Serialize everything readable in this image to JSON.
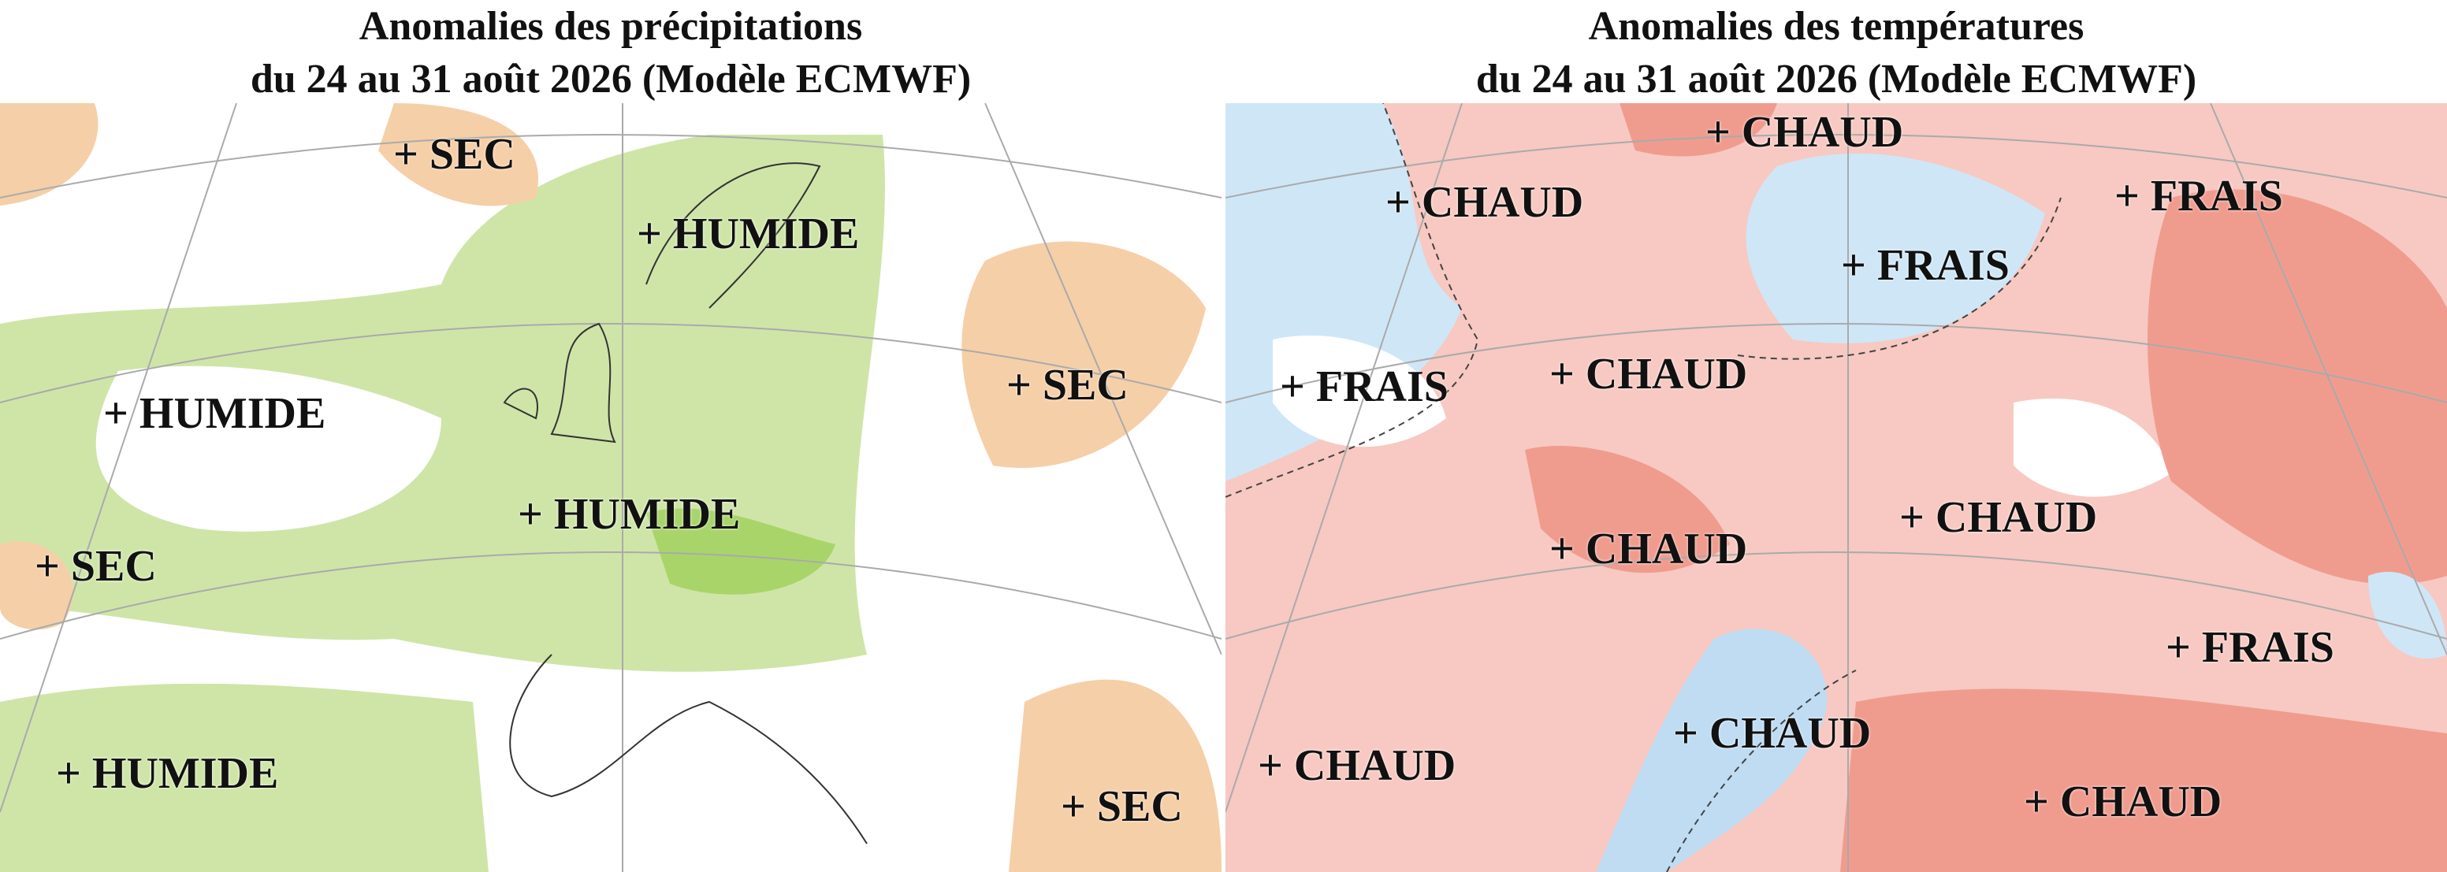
{
  "panels": [
    {
      "title": [
        "Anomalies des précipitations",
        "du 24 au 31 août 2026 (Modèle ECMWF)"
      ],
      "labels": [
        "+ SEC",
        "+ HUMIDE",
        "+ HUMIDE",
        "+ SEC",
        "+ HUMIDE",
        "+ SEC",
        "+ HUMIDE",
        "+ SEC"
      ]
    },
    {
      "title": [
        "Anomalies des températures",
        "du 24 au 31 août 2026 (Modèle ECMWF)"
      ],
      "labels": [
        "+ CHAUD",
        "+ CHAUD",
        "+ FRAIS",
        "+ FRAIS",
        "+ FRAIS",
        "+ CHAUD",
        "+ CHAUD",
        "+ CHAUD",
        "+ FRAIS",
        "+ CHAUD",
        "+ CHAUD",
        "+ CHAUD"
      ]
    }
  ]
}
